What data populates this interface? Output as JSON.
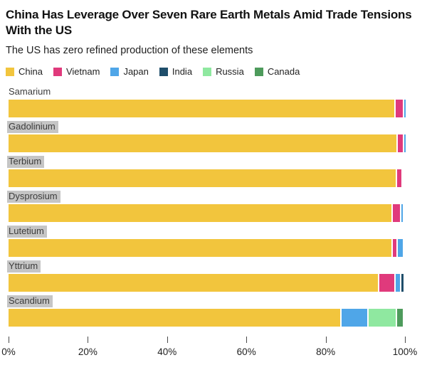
{
  "header": {
    "title": "China Has Leverage Over Seven Rare Earth Metals Amid Trade Tensions With the US",
    "subtitle": "The US has zero refined production of these elements"
  },
  "colors": {
    "China": "#F2C53D",
    "Vietnam": "#E03A7C",
    "Japan": "#4FA6E8",
    "India": "#1F4E6B",
    "Russia": "#8FE8A0",
    "Canada": "#4E9B5C"
  },
  "legend": {
    "items": [
      "China",
      "Vietnam",
      "Japan",
      "India",
      "Russia",
      "Canada"
    ]
  },
  "rows": [
    {
      "label": "Samarium",
      "highlighted": false,
      "segments": [
        {
          "country": "China",
          "pct": 97.3
        },
        {
          "country": "Vietnam",
          "pct": 1.8
        },
        {
          "country": "Japan",
          "pct": 0.3
        }
      ]
    },
    {
      "label": "Gadolinium",
      "highlighted": true,
      "segments": [
        {
          "country": "China",
          "pct": 97.8
        },
        {
          "country": "Vietnam",
          "pct": 1.3
        },
        {
          "country": "Japan",
          "pct": 0.3
        }
      ]
    },
    {
      "label": "Terbium",
      "highlighted": true,
      "segments": [
        {
          "country": "China",
          "pct": 97.7
        },
        {
          "country": "Vietnam",
          "pct": 1.1
        }
      ]
    },
    {
      "label": "Dysprosium",
      "highlighted": true,
      "segments": [
        {
          "country": "China",
          "pct": 96.6
        },
        {
          "country": "Vietnam",
          "pct": 1.8
        },
        {
          "country": "Japan",
          "pct": 0.4
        }
      ]
    },
    {
      "label": "Lutetium",
      "highlighted": true,
      "segments": [
        {
          "country": "China",
          "pct": 96.6
        },
        {
          "country": "Vietnam",
          "pct": 0.9
        },
        {
          "country": "Japan",
          "pct": 1.3
        }
      ]
    },
    {
      "label": "Yttrium",
      "highlighted": true,
      "segments": [
        {
          "country": "China",
          "pct": 93.2
        },
        {
          "country": "Vietnam",
          "pct": 3.8
        },
        {
          "country": "Japan",
          "pct": 1.1
        },
        {
          "country": "India",
          "pct": 0.5
        }
      ]
    },
    {
      "label": "Scandium",
      "highlighted": true,
      "segments": [
        {
          "country": "China",
          "pct": 83.7
        },
        {
          "country": "Japan",
          "pct": 6.5
        },
        {
          "country": "Russia",
          "pct": 6.8
        },
        {
          "country": "Canada",
          "pct": 1.3
        }
      ]
    }
  ],
  "axis": {
    "tick_labels": [
      "0%",
      "20%",
      "40%",
      "60%",
      "80%",
      "100%"
    ],
    "tick_positions": [
      0,
      20,
      40,
      60,
      80,
      100
    ]
  },
  "chart_data": {
    "type": "bar",
    "orientation": "horizontal",
    "stacked": true,
    "title": "China Has Leverage Over Seven Rare Earth Metals Amid Trade Tensions With the US",
    "subtitle": "The US has zero refined production of these elements",
    "categories": [
      "Samarium",
      "Gadolinium",
      "Terbium",
      "Dysprosium",
      "Lutetium",
      "Yttrium",
      "Scandium"
    ],
    "series": [
      {
        "name": "China",
        "color": "#F2C53D",
        "values": [
          97.3,
          97.8,
          97.7,
          96.6,
          96.6,
          93.2,
          83.7
        ]
      },
      {
        "name": "Vietnam",
        "color": "#E03A7C",
        "values": [
          1.8,
          1.3,
          1.1,
          1.8,
          0.9,
          3.8,
          0
        ]
      },
      {
        "name": "Japan",
        "color": "#4FA6E8",
        "values": [
          0.3,
          0.3,
          0,
          0.4,
          1.3,
          1.1,
          6.5
        ]
      },
      {
        "name": "India",
        "color": "#1F4E6B",
        "values": [
          0,
          0,
          0,
          0,
          0,
          0.5,
          0
        ]
      },
      {
        "name": "Russia",
        "color": "#8FE8A0",
        "values": [
          0,
          0,
          0,
          0,
          0,
          0,
          6.8
        ]
      },
      {
        "name": "Canada",
        "color": "#4E9B5C",
        "values": [
          0,
          0,
          0,
          0,
          0,
          0,
          1.3
        ]
      }
    ],
    "xlabel": "",
    "ylabel": "",
    "xlim": [
      0,
      100
    ],
    "x_ticks": [
      "0%",
      "20%",
      "40%",
      "60%",
      "80%",
      "100%"
    ],
    "legend_position": "top",
    "grid": false
  }
}
